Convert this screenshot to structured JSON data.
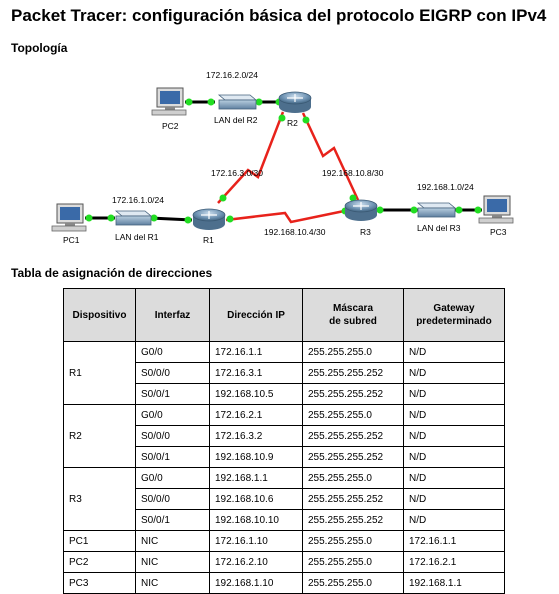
{
  "title": "Packet Tracer: configuración básica del protocolo EIGRP con IPv4",
  "topology": {
    "heading": "Topología",
    "labels": {
      "pc1": "PC1",
      "pc2": "PC2",
      "pc3": "PC3",
      "r1": "R1",
      "r2": "R2",
      "r3": "R3",
      "lan_r1": "LAN del R1",
      "lan_r2": "LAN del R2",
      "lan_r3": "LAN del R3",
      "net_r2_lan": "172.16.2.0/24",
      "net_r1_lan": "172.16.1.0/24",
      "net_r3_lan": "192.168.1.0/24",
      "net_r1_r2": "172.16.3.0/30",
      "net_r2_r3": "192.168.10.8/30",
      "net_r1_r3": "192.168.10.4/30"
    },
    "colors": {
      "serial_link": "#e8221b",
      "ethernet_link": "#000000",
      "link_dot": "#22dd22"
    }
  },
  "address_table": {
    "heading": "Tabla de asignación de direcciones",
    "headers": {
      "device": "Dispositivo",
      "interface": "Interfaz",
      "ip": "Dirección IP",
      "mask_line1": "Máscara",
      "mask_line2": "de subred",
      "gw_line1": "Gateway",
      "gw_line2": "predeterminado"
    },
    "rows": [
      {
        "device": "R1",
        "rows": [
          {
            "interface": "G0/0",
            "ip": "172.16.1.1",
            "mask": "255.255.255.0",
            "gateway": "N/D"
          },
          {
            "interface": "S0/0/0",
            "ip": "172.16.3.1",
            "mask": "255.255.255.252",
            "gateway": "N/D"
          },
          {
            "interface": "S0/0/1",
            "ip": "192.168.10.5",
            "mask": "255.255.255.252",
            "gateway": "N/D"
          }
        ]
      },
      {
        "device": "R2",
        "rows": [
          {
            "interface": "G0/0",
            "ip": "172.16.2.1",
            "mask": "255.255.255.0",
            "gateway": "N/D"
          },
          {
            "interface": "S0/0/0",
            "ip": "172.16.3.2",
            "mask": "255.255.255.252",
            "gateway": "N/D"
          },
          {
            "interface": "S0/0/1",
            "ip": "192.168.10.9",
            "mask": "255.255.255.252",
            "gateway": "N/D"
          }
        ]
      },
      {
        "device": "R3",
        "rows": [
          {
            "interface": "G0/0",
            "ip": "192.168.1.1",
            "mask": "255.255.255.0",
            "gateway": "N/D"
          },
          {
            "interface": "S0/0/0",
            "ip": "192.168.10.6",
            "mask": "255.255.255.252",
            "gateway": "N/D"
          },
          {
            "interface": "S0/0/1",
            "ip": "192.168.10.10",
            "mask": "255.255.255.252",
            "gateway": "N/D"
          }
        ]
      },
      {
        "device": "PC1",
        "rows": [
          {
            "interface": "NIC",
            "ip": "172.16.1.10",
            "mask": "255.255.255.0",
            "gateway": "172.16.1.1"
          }
        ]
      },
      {
        "device": "PC2",
        "rows": [
          {
            "interface": "NIC",
            "ip": "172.16.2.10",
            "mask": "255.255.255.0",
            "gateway": "172.16.2.1"
          }
        ]
      },
      {
        "device": "PC3",
        "rows": [
          {
            "interface": "NIC",
            "ip": "192.168.1.10",
            "mask": "255.255.255.0",
            "gateway": "192.168.1.1"
          }
        ]
      }
    ]
  }
}
